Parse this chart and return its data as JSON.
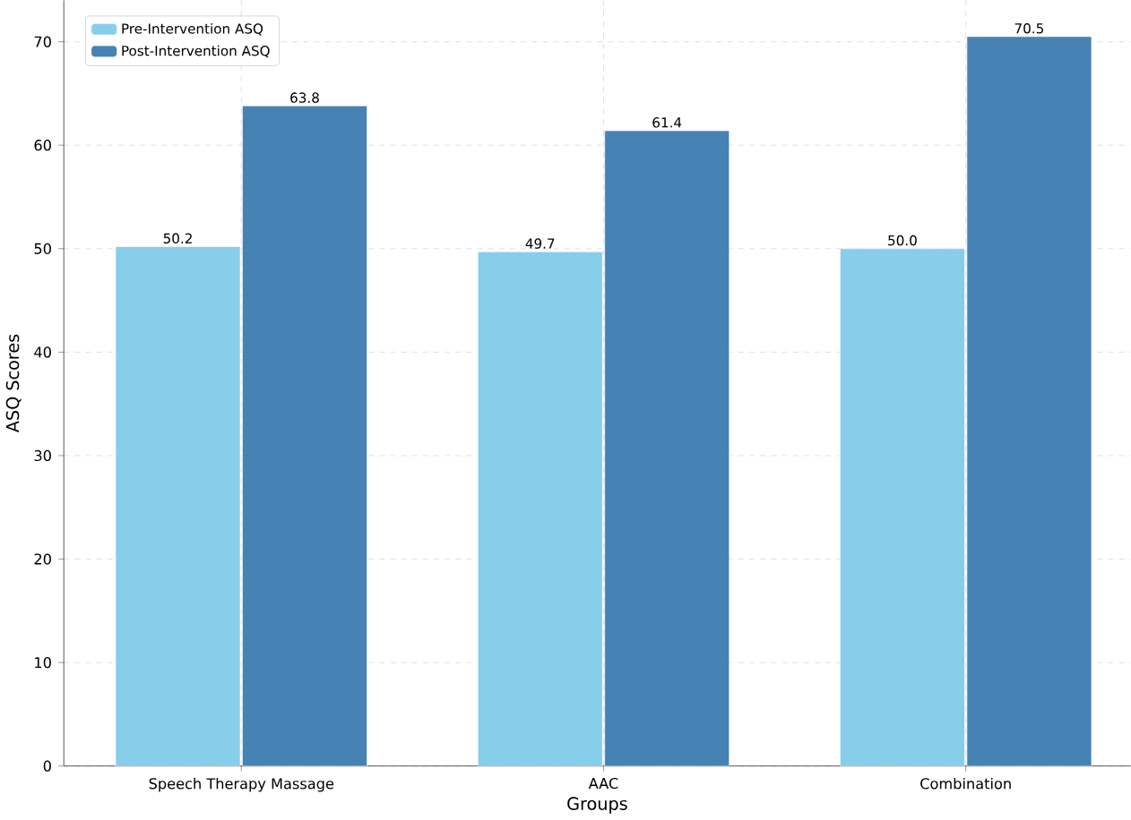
{
  "chart_data": {
    "type": "bar",
    "xlabel": "Groups",
    "ylabel": "ASQ Scores",
    "categories": [
      "Speech Therapy Massage",
      "AAC",
      "Combination"
    ],
    "series": [
      {
        "name": "Pre-Intervention ASQ",
        "color": "#87ceeb",
        "values": [
          50.2,
          49.7,
          50.0
        ],
        "value_labels": [
          "50.2",
          "49.7",
          "50.0"
        ]
      },
      {
        "name": "Post-Intervention ASQ",
        "color": "#4682b4",
        "values": [
          63.8,
          61.4,
          70.5
        ],
        "value_labels": [
          "63.8",
          "61.4",
          "70.5"
        ]
      }
    ],
    "ylim": [
      0,
      74
    ],
    "yticks": [
      0,
      10,
      20,
      30,
      40,
      50,
      60,
      70
    ],
    "grid": true,
    "legend": "top left"
  }
}
